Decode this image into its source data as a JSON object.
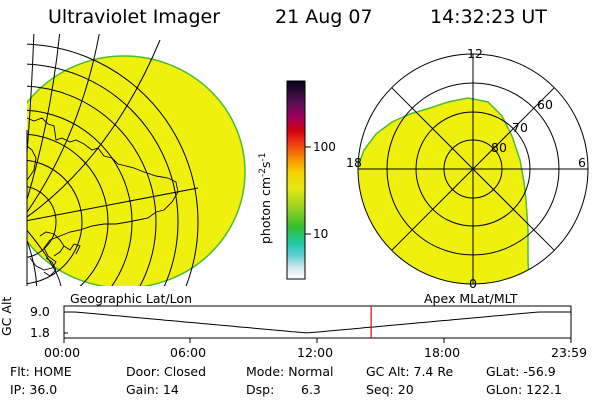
{
  "header": {
    "instrument": "Ultraviolet Imager",
    "date": "21 Aug 07",
    "time": "14:32:23 UT"
  },
  "colors": {
    "image_fill": "#f0f00e",
    "image_edge": "#4dbd2f",
    "grid_line": "#000000",
    "marker_line": "#d01010"
  },
  "colorbar": {
    "label": "photon cm-2s-1",
    "ticks": [
      "100",
      "10"
    ]
  },
  "left_panel": {
    "label": "Geographic Lat/Lon"
  },
  "right_panel": {
    "label": "Apex MLat/MLT",
    "mlt_labels": {
      "top": "12",
      "left": "18",
      "right": "6",
      "bottom": "0"
    },
    "lat_labels": [
      "60",
      "70",
      "80"
    ]
  },
  "altitude_plot": {
    "axis_label": "GC Alt",
    "y_ticks": [
      "9.0",
      "1.8"
    ],
    "x_ticks": [
      "00:00",
      "06:00",
      "12:00",
      "18:00",
      "23:59"
    ],
    "current_time_hours": 14.54
  },
  "status": {
    "flt": "Flt: HOME",
    "ip": "IP: 36.0",
    "door": "Door: Closed",
    "gain": "Gain: 14",
    "mode": "Mode: Normal",
    "dsp_label": "Dsp:",
    "dsp_value": "6.3",
    "gc_alt": "GC Alt: 7.4 Re",
    "seq": "Seq: 20",
    "glat": "GLat: -56.9",
    "glon": "GLon: 122.1"
  }
}
